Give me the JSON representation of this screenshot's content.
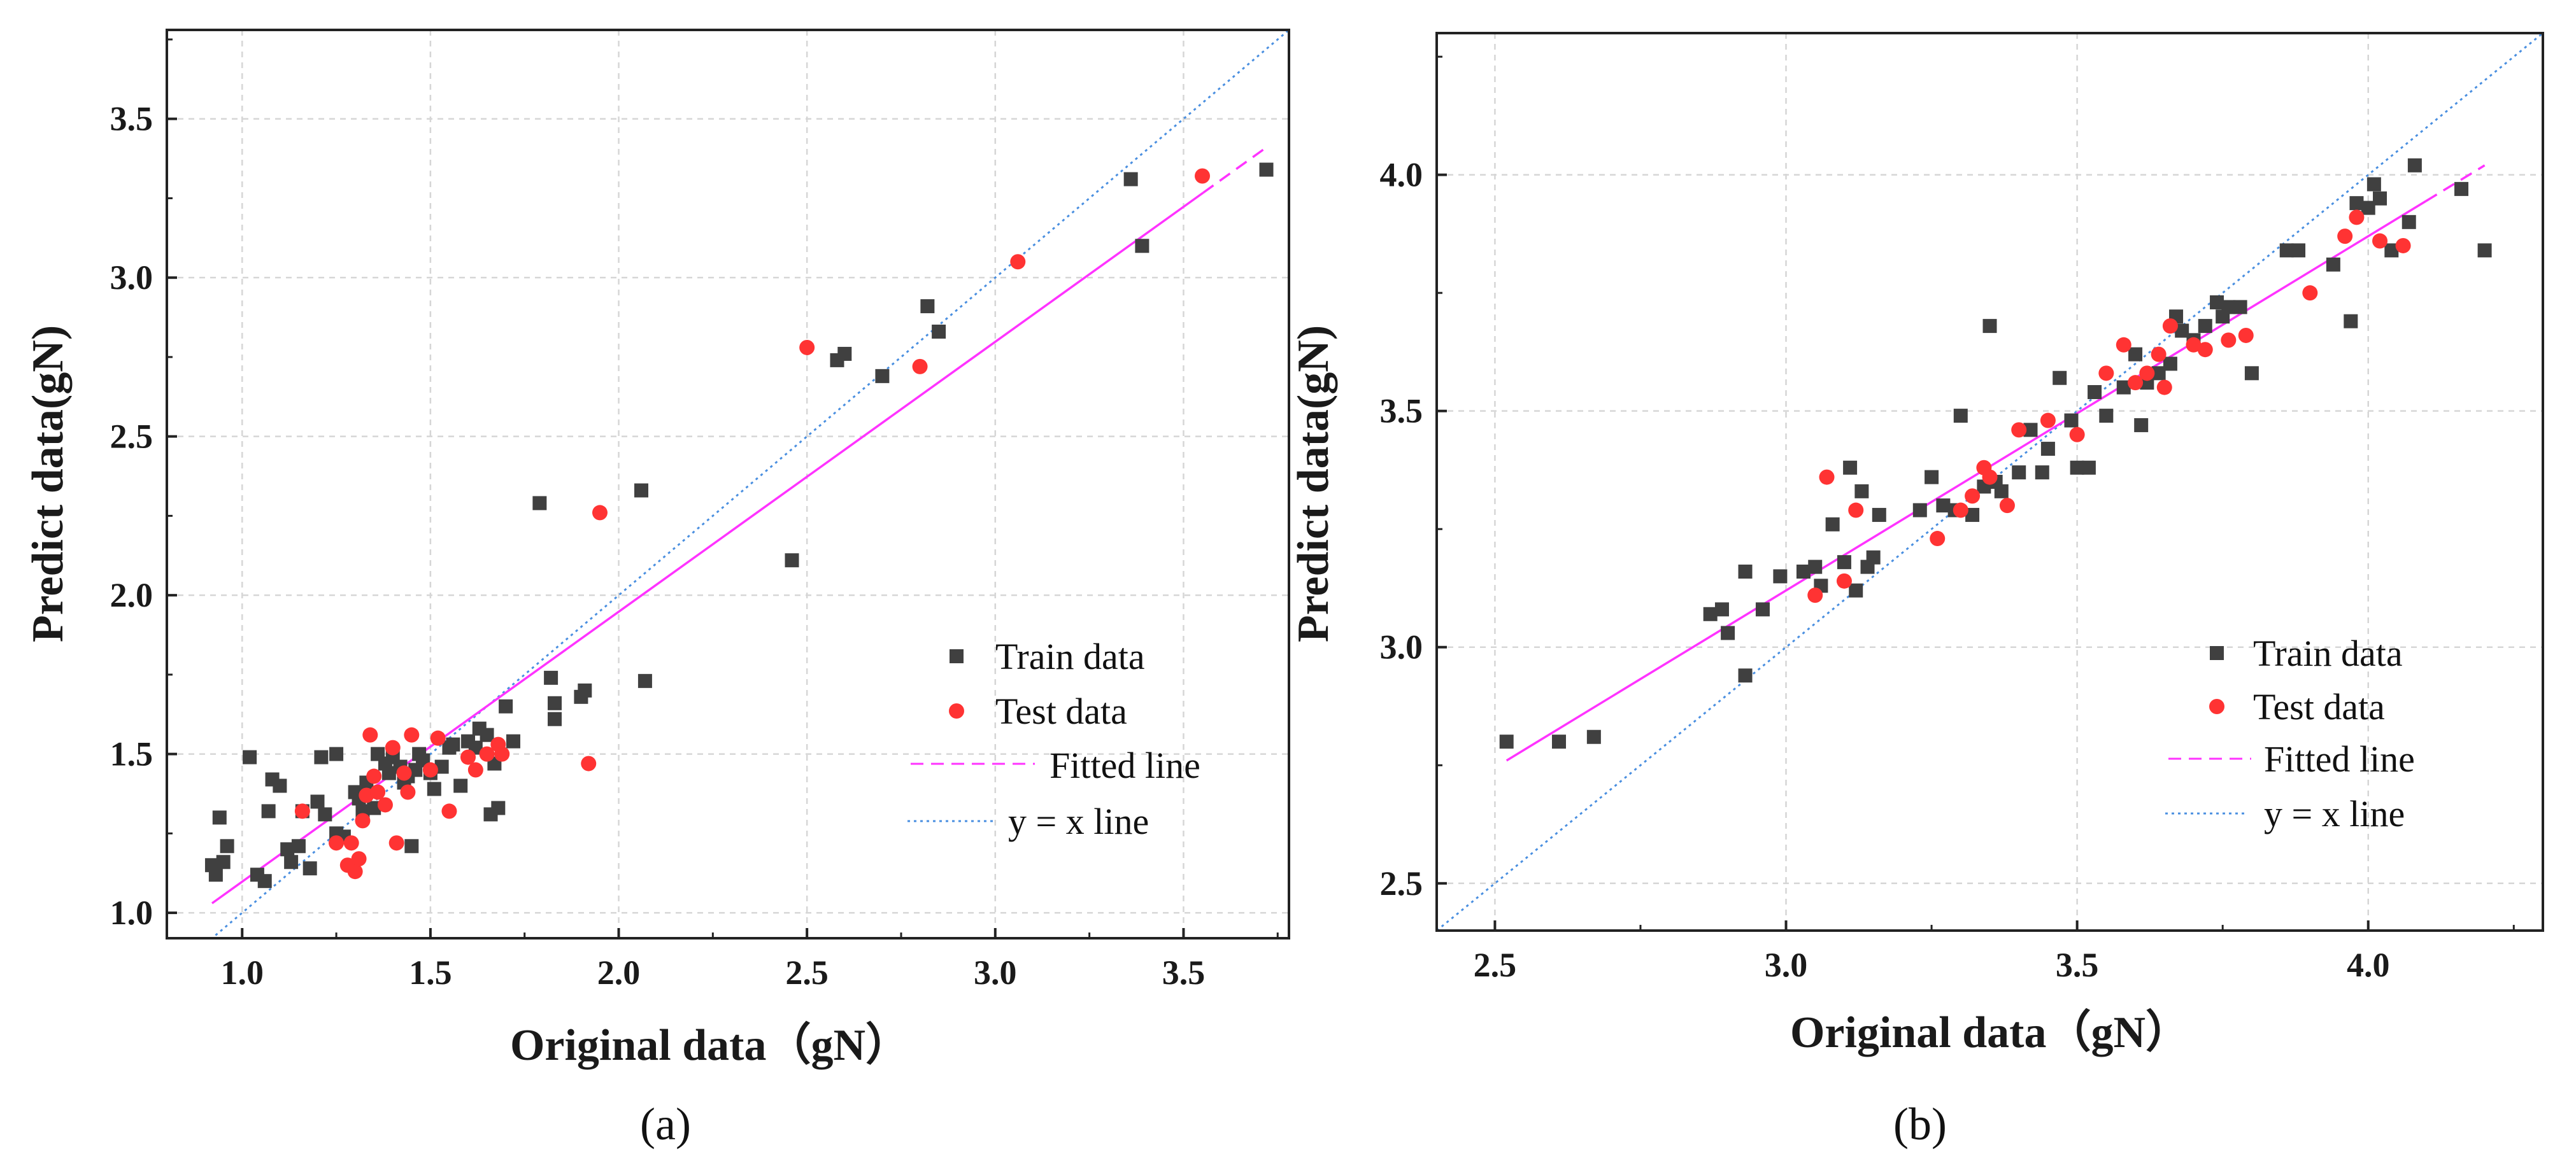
{
  "colors": {
    "train": "#404040",
    "test": "#ff3333",
    "fit": "#ff33ff",
    "identity": "#4a8fe0",
    "grid": "#d6d6d6",
    "axis": "#222222"
  },
  "chart_data": [
    {
      "id": "a",
      "type": "scatter",
      "panel_label": "(a)",
      "xlabel": "Original data（gN）",
      "ylabel": "Predict data(gN)",
      "xlim": [
        0.8,
        3.78
      ],
      "ylim": [
        0.92,
        3.78
      ],
      "xticks": [
        1.0,
        1.5,
        2.0,
        2.5,
        3.0,
        3.5
      ],
      "yticks": [
        1.0,
        1.5,
        2.0,
        2.5,
        3.0,
        3.5
      ],
      "tick_labels_x": [
        "1.0",
        "1.5",
        "2.0",
        "2.5",
        "3.0",
        "3.5"
      ],
      "tick_labels_y": [
        "1.0",
        "1.5",
        "2.0",
        "2.5",
        "3.0",
        "3.5"
      ],
      "grid": true,
      "legend_position": "bottom-right",
      "legend": [
        {
          "key": "train",
          "label": "Train data"
        },
        {
          "key": "test",
          "label": "Test data"
        },
        {
          "key": "fit",
          "label": "Fitted line"
        },
        {
          "key": "identity",
          "label": "y = x line"
        }
      ],
      "fit_line": {
        "x": [
          0.92,
          3.72
        ],
        "y": [
          1.03,
          3.41
        ]
      },
      "identity_line": {
        "x": [
          0.8,
          3.78
        ]
      },
      "series": [
        {
          "name": "Train data",
          "marker": "square",
          "x": [
            0.92,
            0.93,
            0.94,
            0.95,
            0.96,
            1.02,
            1.04,
            1.06,
            1.07,
            1.08,
            1.1,
            1.12,
            1.13,
            1.15,
            1.16,
            1.18,
            1.2,
            1.21,
            1.22,
            1.25,
            1.25,
            1.27,
            1.3,
            1.31,
            1.32,
            1.33,
            1.35,
            1.36,
            1.38,
            1.39,
            1.4,
            1.42,
            1.43,
            1.44,
            1.45,
            1.46,
            1.47,
            1.48,
            1.5,
            1.51,
            1.53,
            1.55,
            1.56,
            1.58,
            1.6,
            1.62,
            1.63,
            1.65,
            1.66,
            1.67,
            1.68,
            1.7,
            1.72,
            1.79,
            1.82,
            1.83,
            1.83,
            1.9,
            1.91,
            2.06,
            2.07,
            2.46,
            2.58,
            2.6,
            2.7,
            2.82,
            2.85,
            3.36,
            3.39,
            3.72
          ],
          "y": [
            1.15,
            1.12,
            1.3,
            1.16,
            1.21,
            1.49,
            1.12,
            1.1,
            1.32,
            1.42,
            1.4,
            1.2,
            1.16,
            1.21,
            1.32,
            1.14,
            1.35,
            1.49,
            1.31,
            1.5,
            1.25,
            1.24,
            1.38,
            1.36,
            1.32,
            1.41,
            1.33,
            1.5,
            1.47,
            1.44,
            1.49,
            1.46,
            1.41,
            1.43,
            1.21,
            1.45,
            1.5,
            1.48,
            1.44,
            1.39,
            1.46,
            1.52,
            1.53,
            1.4,
            1.54,
            1.52,
            1.58,
            1.56,
            1.31,
            1.47,
            1.33,
            1.65,
            1.54,
            2.29,
            1.74,
            1.61,
            1.66,
            1.68,
            1.7,
            2.33,
            1.73,
            2.11,
            2.74,
            2.76,
            2.69,
            2.91,
            2.83,
            3.31,
            3.1,
            3.34
          ]
        },
        {
          "name": "Test data",
          "marker": "circle",
          "x": [
            1.16,
            1.25,
            1.28,
            1.29,
            1.3,
            1.31,
            1.32,
            1.33,
            1.34,
            1.35,
            1.36,
            1.38,
            1.4,
            1.41,
            1.43,
            1.44,
            1.45,
            1.5,
            1.52,
            1.55,
            1.6,
            1.62,
            1.65,
            1.68,
            1.69,
            1.92,
            1.95,
            2.5,
            2.8,
            3.06,
            3.55
          ],
          "y": [
            1.32,
            1.22,
            1.15,
            1.22,
            1.13,
            1.17,
            1.29,
            1.37,
            1.56,
            1.43,
            1.38,
            1.34,
            1.52,
            1.22,
            1.44,
            1.38,
            1.56,
            1.45,
            1.55,
            1.32,
            1.49,
            1.45,
            1.5,
            1.53,
            1.5,
            1.47,
            2.26,
            2.78,
            2.72,
            3.05,
            3.32
          ]
        }
      ]
    },
    {
      "id": "b",
      "type": "scatter",
      "panel_label": "(b)",
      "xlabel": "Original data（gN）",
      "ylabel": "Predict data(gN)",
      "xlim": [
        2.4,
        4.3
      ],
      "ylim": [
        2.4,
        4.3
      ],
      "xticks": [
        2.5,
        3.0,
        3.5,
        4.0
      ],
      "yticks": [
        2.5,
        3.0,
        3.5,
        4.0
      ],
      "tick_labels_x": [
        "2.5",
        "3.0",
        "3.5",
        "4.0"
      ],
      "tick_labels_y": [
        "2.5",
        "3.0",
        "3.5",
        "4.0"
      ],
      "grid": true,
      "legend_position": "bottom-right",
      "legend": [
        {
          "key": "train",
          "label": "Train data"
        },
        {
          "key": "test",
          "label": "Test data"
        },
        {
          "key": "fit",
          "label": "Fitted line"
        },
        {
          "key": "identity",
          "label": "y = x line"
        }
      ],
      "fit_line": {
        "x": [
          2.52,
          4.2
        ],
        "y": [
          2.76,
          4.02
        ]
      },
      "identity_line": {
        "x": [
          2.4,
          4.3
        ]
      },
      "series": [
        {
          "name": "Train data",
          "marker": "square",
          "x": [
            2.52,
            2.61,
            2.67,
            2.87,
            2.89,
            2.9,
            2.93,
            2.93,
            2.96,
            2.99,
            3.03,
            3.05,
            3.06,
            3.08,
            3.1,
            3.11,
            3.12,
            3.13,
            3.14,
            3.15,
            3.16,
            3.23,
            3.25,
            3.27,
            3.29,
            3.3,
            3.32,
            3.34,
            3.35,
            3.36,
            3.37,
            3.4,
            3.42,
            3.44,
            3.45,
            3.47,
            3.49,
            3.5,
            3.52,
            3.53,
            3.55,
            3.58,
            3.6,
            3.61,
            3.62,
            3.64,
            3.66,
            3.67,
            3.68,
            3.7,
            3.72,
            3.74,
            3.75,
            3.76,
            3.78,
            3.8,
            3.86,
            3.88,
            3.94,
            3.97,
            3.98,
            4.0,
            4.01,
            4.02,
            4.04,
            4.07,
            4.08,
            4.16,
            4.2
          ],
          "y": [
            2.8,
            2.8,
            2.81,
            3.07,
            3.08,
            3.03,
            2.94,
            3.16,
            3.08,
            3.15,
            3.16,
            3.17,
            3.13,
            3.26,
            3.18,
            3.38,
            3.12,
            3.33,
            3.17,
            3.19,
            3.28,
            3.29,
            3.36,
            3.3,
            3.29,
            3.49,
            3.28,
            3.34,
            3.68,
            3.35,
            3.33,
            3.37,
            3.46,
            3.37,
            3.42,
            3.57,
            3.48,
            3.38,
            3.38,
            3.54,
            3.49,
            3.55,
            3.62,
            3.47,
            3.56,
            3.58,
            3.6,
            3.7,
            3.67,
            3.65,
            3.68,
            3.73,
            3.7,
            3.72,
            3.72,
            3.58,
            3.84,
            3.84,
            3.81,
            3.69,
            3.94,
            3.93,
            3.98,
            3.95,
            3.84,
            3.9,
            4.02,
            3.97,
            3.84
          ]
        },
        {
          "name": "Test data",
          "marker": "circle",
          "x": [
            3.05,
            3.07,
            3.1,
            3.12,
            3.26,
            3.3,
            3.32,
            3.34,
            3.35,
            3.38,
            3.4,
            3.45,
            3.5,
            3.55,
            3.58,
            3.6,
            3.62,
            3.64,
            3.65,
            3.66,
            3.7,
            3.72,
            3.76,
            3.79,
            3.9,
            3.96,
            3.98,
            4.02,
            4.06
          ],
          "y": [
            3.11,
            3.36,
            3.14,
            3.29,
            3.23,
            3.29,
            3.32,
            3.38,
            3.36,
            3.3,
            3.46,
            3.48,
            3.45,
            3.58,
            3.64,
            3.56,
            3.58,
            3.62,
            3.55,
            3.68,
            3.64,
            3.63,
            3.65,
            3.66,
            3.75,
            3.87,
            3.91,
            3.86,
            3.85
          ]
        }
      ]
    }
  ]
}
